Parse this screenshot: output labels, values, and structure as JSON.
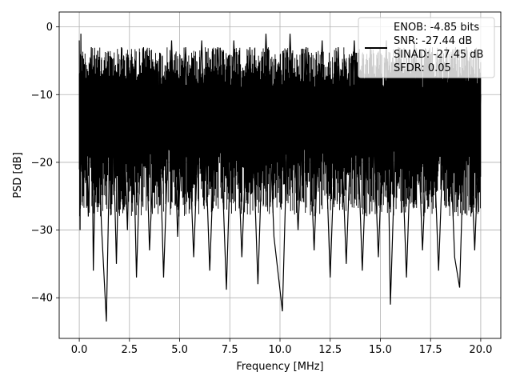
{
  "chart_data": {
    "type": "line",
    "title": "",
    "xlabel": "Frequency [MHz]",
    "ylabel": "PSD [dB]",
    "xlim": [
      -1.0,
      21.0
    ],
    "ylim": [
      -46.0,
      2.2
    ],
    "xticks": [
      0.0,
      2.5,
      5.0,
      7.5,
      10.0,
      12.5,
      15.0,
      17.5,
      20.0
    ],
    "xtick_labels": [
      "0.0",
      "2.5",
      "5.0",
      "7.5",
      "10.0",
      "12.5",
      "15.0",
      "17.5",
      "20.0"
    ],
    "yticks": [
      0,
      -10,
      -20,
      -30,
      -40
    ],
    "ytick_labels": [
      "0",
      "−10",
      "−20",
      "−30",
      "−40"
    ],
    "grid": true,
    "legend": {
      "placement": "top-right",
      "entries": [
        "ENOB: -4.85 bits",
        "SNR: -27.44 dB",
        "SINAD: -27.45 dB",
        "SFDR: 0.05"
      ]
    },
    "series": [
      {
        "color": "#000000",
        "x": [
          0.0,
          0.04,
          0.08,
          0.12,
          0.2,
          0.3,
          0.45,
          0.6,
          0.7,
          0.9,
          1.1,
          1.35,
          1.6,
          1.85,
          2.1,
          2.4,
          2.6,
          2.85,
          3.2,
          3.5,
          3.9,
          4.2,
          4.6,
          4.9,
          5.3,
          5.7,
          6.1,
          6.5,
          6.9,
          7.33,
          7.7,
          8.1,
          8.5,
          8.9,
          9.3,
          9.7,
          10.12,
          10.5,
          10.9,
          11.3,
          11.7,
          12.1,
          12.5,
          12.9,
          13.3,
          13.7,
          14.1,
          14.5,
          14.9,
          15.3,
          15.5,
          15.9,
          16.3,
          16.7,
          17.1,
          17.5,
          17.9,
          18.3,
          18.7,
          18.95,
          19.3,
          19.7,
          20.0
        ],
        "y": [
          -2,
          -30,
          -1,
          -20,
          -25,
          -8,
          -28,
          -3,
          -36,
          -6,
          -29,
          -43.5,
          -5,
          -35,
          -3,
          -30,
          -4,
          -37,
          -3,
          -33,
          -5,
          -37,
          -2,
          -31,
          -3,
          -34,
          -2,
          -36,
          -3,
          -38.8,
          -2,
          -34,
          -3,
          -38,
          -1,
          -31,
          -42,
          -1,
          -30,
          -3,
          -33,
          -2,
          -37,
          -3,
          -35,
          -2,
          -36,
          -3,
          -34,
          -2,
          -41,
          -3,
          -37,
          -2,
          -33,
          -4,
          -36,
          -3,
          -34,
          -38.5,
          -3,
          -33,
          -10
        ]
      }
    ]
  }
}
